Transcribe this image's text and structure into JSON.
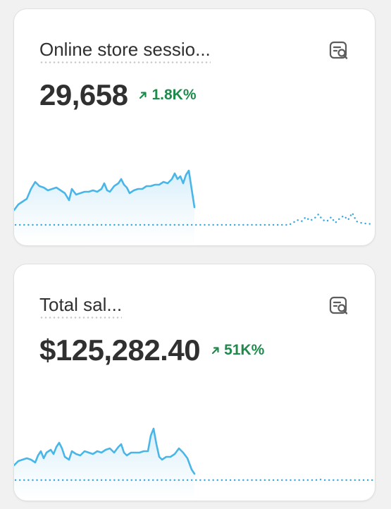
{
  "cards": [
    {
      "title": "Online store sessio...",
      "value": "29,658",
      "change": "1.8K%",
      "change_direction": "up",
      "explore_icon": "explore-search-icon",
      "colors": {
        "line": "#4ab6e8",
        "fill_top": "#d6eefa",
        "compare": "#3aa7dc",
        "positive": "#1f8a4c"
      }
    },
    {
      "title": "Total sal...",
      "value": "$125,282.40",
      "change": "51K%",
      "change_direction": "up",
      "explore_icon": "explore-search-icon",
      "colors": {
        "line": "#4ab6e8",
        "fill_top": "#d6eefa",
        "compare": "#3aa7dc",
        "positive": "#1f8a4c"
      }
    }
  ]
}
